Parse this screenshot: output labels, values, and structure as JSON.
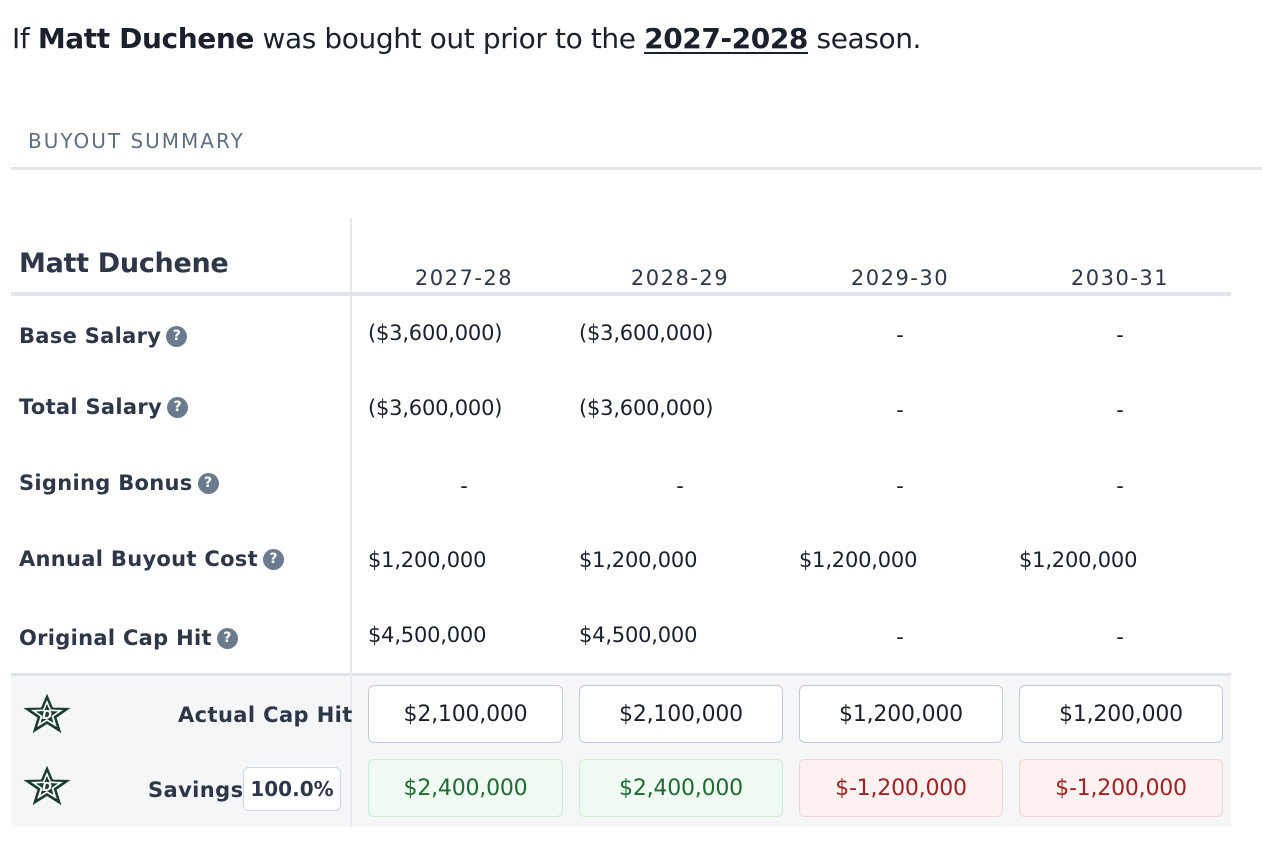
{
  "headline": {
    "prefix": "If",
    "player": "Matt Duchene",
    "middle": "was bought out prior to the",
    "season_link": "2027-2028",
    "suffix": "season."
  },
  "section_title": "BUYOUT SUMMARY",
  "table": {
    "player_name": "Matt Duchene",
    "seasons": [
      "2027-28",
      "2028-29",
      "2029-30",
      "2030-31"
    ],
    "rows": [
      {
        "label": "Base Salary",
        "help": "?",
        "values": [
          "($3,600,000)",
          "($3,600,000)",
          "-",
          "-"
        ]
      },
      {
        "label": "Total Salary",
        "help": "?",
        "values": [
          "($3,600,000)",
          "($3,600,000)",
          "-",
          "-"
        ]
      },
      {
        "label": "Signing Bonus",
        "help": "?",
        "values": [
          "-",
          "-",
          "-",
          "-"
        ]
      },
      {
        "label": "Annual Buyout Cost",
        "help": "?",
        "values": [
          "$1,200,000",
          "$1,200,000",
          "$1,200,000",
          "$1,200,000"
        ]
      },
      {
        "label": "Original Cap Hit",
        "help": "?",
        "values": [
          "$4,500,000",
          "$4,500,000",
          "-",
          "-"
        ]
      }
    ],
    "actual_cap_hit": {
      "label": "Actual Cap Hit",
      "values": [
        "$2,100,000",
        "$2,100,000",
        "$1,200,000",
        "$1,200,000"
      ]
    },
    "savings": {
      "label": "Savings",
      "percent": "100.0%",
      "values": [
        "$2,400,000",
        "$2,400,000",
        "$-1,200,000",
        "$-1,200,000"
      ],
      "status": [
        "positive",
        "positive",
        "negative",
        "negative"
      ]
    }
  },
  "logo": {
    "icon": "dallas-stars-logo-icon",
    "star_color": "#1c3d2e",
    "outline_color": "#ffffff",
    "accent": "#8f9ea3"
  },
  "colors": {
    "text": "#2d3748",
    "muted": "#5f6f82",
    "positive_text": "#1f6b33",
    "positive_bg": "#f0fbf3",
    "negative_text": "#a02222",
    "negative_bg": "#fdf1f1",
    "help_icon": "#6b7a8c"
  }
}
